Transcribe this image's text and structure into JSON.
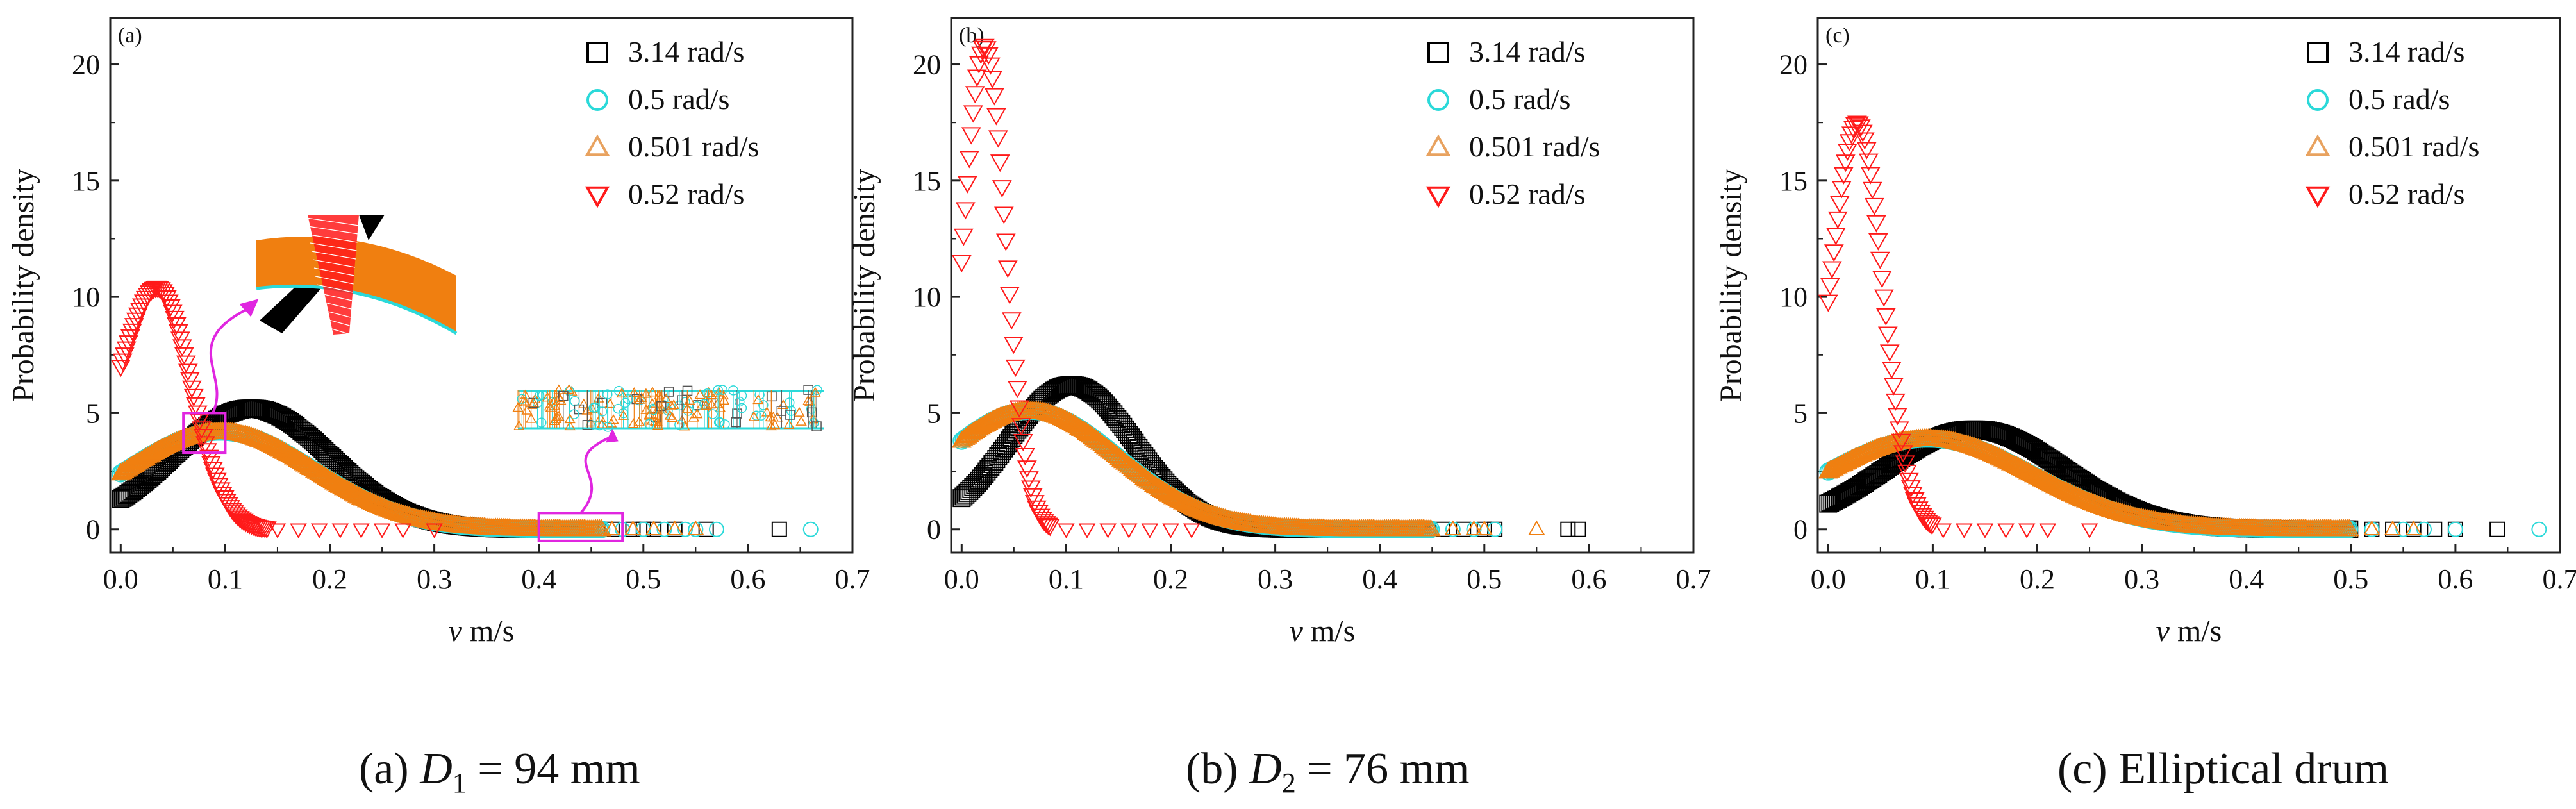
{
  "colors": {
    "s314": "#000000",
    "s05": "#2bd9d9",
    "s0501": "#f07f10",
    "s0501_legend": "#e8a25f",
    "s052": "#ff1a1a",
    "inset": "#e026e0"
  },
  "legend": [
    "3.14 rad/s",
    "0.5 rad/s",
    "0.501 rad/s",
    "0.52 rad/s"
  ],
  "chart_data": [
    {
      "type": "scatter",
      "panel_label": "(a)",
      "caption": {
        "prefix": "(a) ",
        "symbol": "D",
        "sub": "1",
        "suffix": " = 94 mm"
      },
      "xlabel_var": "v",
      "xlabel_unit": " m/s",
      "ylabel": "Probability  density",
      "xlim": [
        -0.01,
        0.7
      ],
      "ylim": [
        -1,
        22
      ],
      "xticks": [
        "0.0",
        "0.1",
        "0.2",
        "0.3",
        "0.4",
        "0.5",
        "0.6",
        "0.7"
      ],
      "yticks": [
        "0",
        "5",
        "10",
        "15",
        "20"
      ],
      "series": [
        {
          "name": "3.14 rad/s",
          "marker": "square",
          "mu": 0.125,
          "sigma": 0.075,
          "peak": 5.2,
          "xmin": 0.0,
          "xmax": 0.43,
          "tail": [
            0.45,
            0.47,
            0.49,
            0.5,
            0.51,
            0.53,
            0.56,
            0.63
          ]
        },
        {
          "name": "0.5 rad/s",
          "marker": "circle",
          "mu": 0.095,
          "sigma": 0.09,
          "peak": 4.2,
          "xmin": 0.0,
          "xmax": 0.46,
          "tail": [
            0.48,
            0.5,
            0.52,
            0.54,
            0.55,
            0.57,
            0.66
          ]
        },
        {
          "name": "0.501 rad/s",
          "marker": "triangle-up",
          "mu": 0.095,
          "sigma": 0.09,
          "peak": 4.2,
          "xmin": 0.0,
          "xmax": 0.46,
          "tail": [
            0.47,
            0.49,
            0.51,
            0.53,
            0.55
          ]
        },
        {
          "name": "0.52 rad/s",
          "marker": "triangle-down",
          "mu": 0.035,
          "sigma": 0.032,
          "peak": 10.4,
          "start": 7.0,
          "xmin": 0.0,
          "xmax": 0.14,
          "tail": [
            0.15,
            0.17,
            0.19,
            0.21,
            0.23,
            0.25,
            0.27,
            0.3
          ]
        }
      ],
      "insets": [
        {
          "box_x": [
            0.06,
            0.1
          ],
          "box_y": [
            3.3,
            5.0
          ]
        },
        {
          "box_x": [
            0.4,
            0.48
          ],
          "box_y": [
            -0.5,
            0.7
          ]
        }
      ]
    },
    {
      "type": "scatter",
      "panel_label": "(b)",
      "caption": {
        "prefix": "(b) ",
        "symbol": "D",
        "sub": "2",
        "suffix": " = 76 mm"
      },
      "xlabel_var": "v",
      "xlabel_unit": " m/s",
      "ylabel": "Probability  density",
      "xlim": [
        -0.01,
        0.7
      ],
      "ylim": [
        -1,
        22
      ],
      "xticks": [
        "0.0",
        "0.1",
        "0.2",
        "0.3",
        "0.4",
        "0.5",
        "0.6",
        "0.7"
      ],
      "yticks": [
        "0",
        "5",
        "10",
        "15",
        "20"
      ],
      "series": [
        {
          "name": "3.14 rad/s",
          "marker": "square",
          "mu": 0.105,
          "sigma": 0.06,
          "peak": 6.2,
          "xmin": 0.0,
          "xmax": 0.44,
          "tail": [
            0.46,
            0.48,
            0.5,
            0.51,
            0.58,
            0.59
          ]
        },
        {
          "name": "0.5 rad/s",
          "marker": "circle",
          "mu": 0.065,
          "sigma": 0.085,
          "peak": 5.1,
          "xmin": 0.0,
          "xmax": 0.45,
          "tail": [
            0.47,
            0.49,
            0.51
          ]
        },
        {
          "name": "0.501 rad/s",
          "marker": "triangle-up",
          "mu": 0.065,
          "sigma": 0.085,
          "peak": 5.1,
          "xmin": 0.0,
          "xmax": 0.45,
          "tail": [
            0.47,
            0.49,
            0.5,
            0.55
          ]
        },
        {
          "name": "0.52 rad/s",
          "marker": "triangle-down",
          "mu": 0.022,
          "sigma": 0.02,
          "peak": 20.8,
          "start": 11.5,
          "xmin": 0.0,
          "xmax": 0.085,
          "tail": [
            0.1,
            0.12,
            0.14,
            0.16,
            0.18,
            0.2,
            0.22
          ]
        }
      ]
    },
    {
      "type": "scatter",
      "panel_label": "(c)",
      "caption": {
        "prefix": "(c) ",
        "symbol": "",
        "sub": "",
        "suffix": "Elliptical drum"
      },
      "xlabel_var": "v",
      "xlabel_unit": " m/s",
      "ylabel": "Probability  density",
      "xlim": [
        -0.01,
        0.7
      ],
      "ylim": [
        -1,
        22
      ],
      "xticks": [
        "0.0",
        "0.1",
        "0.2",
        "0.3",
        "0.4",
        "0.5",
        "0.6",
        "0.7"
      ],
      "yticks": [
        "0",
        "5",
        "10",
        "15",
        "20"
      ],
      "series": [
        {
          "name": "3.14 rad/s",
          "marker": "square",
          "mu": 0.14,
          "sigma": 0.085,
          "peak": 4.3,
          "xmin": 0.0,
          "xmax": 0.5,
          "tail": [
            0.52,
            0.54,
            0.56,
            0.58,
            0.6,
            0.64
          ]
        },
        {
          "name": "0.5 rad/s",
          "marker": "circle",
          "mu": 0.095,
          "sigma": 0.1,
          "peak": 3.9,
          "xmin": 0.0,
          "xmax": 0.5,
          "tail": [
            0.52,
            0.55,
            0.57,
            0.6,
            0.68
          ]
        },
        {
          "name": "0.501 rad/s",
          "marker": "triangle-up",
          "mu": 0.095,
          "sigma": 0.1,
          "peak": 3.9,
          "xmin": 0.0,
          "xmax": 0.5,
          "tail": [
            0.52,
            0.54,
            0.56
          ]
        },
        {
          "name": "0.52 rad/s",
          "marker": "triangle-down",
          "mu": 0.028,
          "sigma": 0.024,
          "peak": 17.5,
          "start": 9.8,
          "xmin": 0.0,
          "xmax": 0.1,
          "tail": [
            0.11,
            0.13,
            0.15,
            0.17,
            0.19,
            0.21,
            0.25
          ]
        }
      ]
    }
  ]
}
